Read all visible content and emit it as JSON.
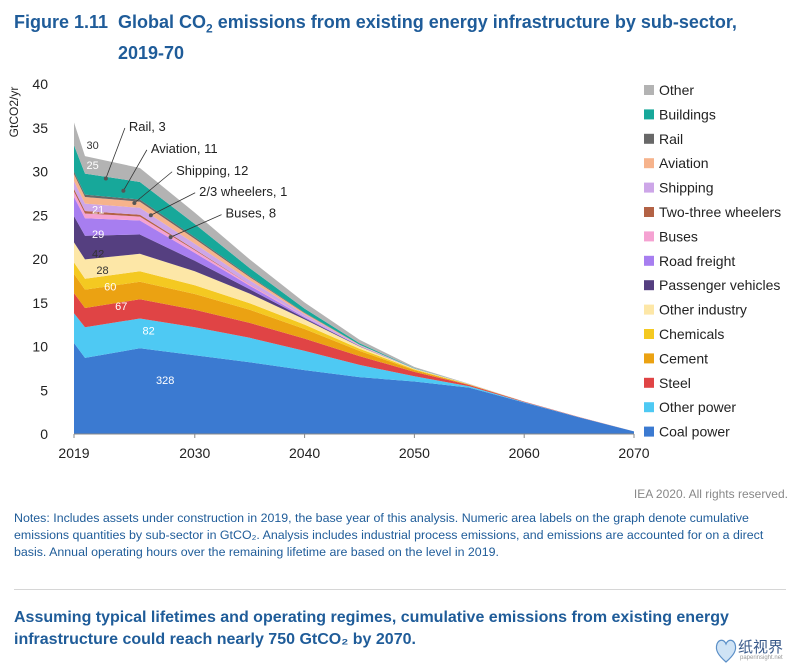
{
  "figure": {
    "number": "Figure 1.11",
    "title_pre": "Global CO",
    "title_sub": "2",
    "title_post": " emissions from existing energy infrastructure by sub-sector,",
    "title_line2": "2019-70"
  },
  "chart_data": {
    "type": "area",
    "stacked": true,
    "ylabel": "GtCO2/yr",
    "ylim": [
      0,
      40
    ],
    "xlim": [
      2019,
      2070
    ],
    "yticks": [
      "0",
      "5",
      "10",
      "15",
      "20",
      "25",
      "30",
      "35",
      "40"
    ],
    "xticks": [
      "2019",
      "2030",
      "2040",
      "2050",
      "2060",
      "2070"
    ],
    "grid": false,
    "legend_placement": "right",
    "x": [
      2019,
      2020,
      2025,
      2030,
      2035,
      2040,
      2045,
      2050,
      2055,
      2060,
      2065,
      2070
    ],
    "series": [
      {
        "name": "Coal power",
        "color": "#3b7ad1",
        "values": [
          10.4,
          8.7,
          9.8,
          9.0,
          8.2,
          7.3,
          6.5,
          6.0,
          5.3,
          3.6,
          1.9,
          0.3
        ]
      },
      {
        "name": "Other power",
        "color": "#4ec9f3",
        "values": [
          3.4,
          3.5,
          3.4,
          3.2,
          2.8,
          2.2,
          1.4,
          0.6,
          0.15,
          0.05,
          0.02,
          0.0
        ]
      },
      {
        "name": "Steel",
        "color": "#e04445",
        "values": [
          2.3,
          2.2,
          2.2,
          2.0,
          1.7,
          1.4,
          1.0,
          0.5,
          0.15,
          0.05,
          0.02,
          0.0
        ]
      },
      {
        "name": "Cement",
        "color": "#eba212",
        "values": [
          2.2,
          2.1,
          2.0,
          1.8,
          1.5,
          1.1,
          0.6,
          0.2,
          0.05,
          0.0,
          0.0,
          0.0
        ]
      },
      {
        "name": "Chemicals",
        "color": "#f4c921",
        "values": [
          1.3,
          1.25,
          1.2,
          1.0,
          0.75,
          0.5,
          0.25,
          0.08,
          0.02,
          0.0,
          0.0,
          0.0
        ]
      },
      {
        "name": "Other industry",
        "color": "#fde7a7",
        "values": [
          2.3,
          2.2,
          2.0,
          1.6,
          1.1,
          0.6,
          0.25,
          0.08,
          0.02,
          0.0,
          0.0,
          0.0
        ]
      },
      {
        "name": "Passenger vehicles",
        "color": "#553f80",
        "values": [
          3.0,
          2.7,
          2.2,
          1.2,
          0.5,
          0.15,
          0.04,
          0.0,
          0.0,
          0.0,
          0.0,
          0.0
        ]
      },
      {
        "name": "Road freight",
        "color": "#a77ef0",
        "values": [
          2.2,
          2.0,
          1.6,
          0.9,
          0.4,
          0.12,
          0.03,
          0.0,
          0.0,
          0.0,
          0.0,
          0.0
        ]
      },
      {
        "name": "Buses",
        "color": "#f5a2d2",
        "values": [
          0.6,
          0.55,
          0.45,
          0.3,
          0.15,
          0.05,
          0.01,
          0.0,
          0.0,
          0.0,
          0.0,
          0.0
        ]
      },
      {
        "name": "Two-three wheelers",
        "color": "#b36245",
        "values": [
          0.3,
          0.28,
          0.2,
          0.1,
          0.03,
          0.0,
          0.0,
          0.0,
          0.0,
          0.0,
          0.0,
          0.0
        ]
      },
      {
        "name": "Shipping",
        "color": "#cda6e8",
        "values": [
          0.9,
          0.85,
          0.8,
          0.65,
          0.45,
          0.25,
          0.08,
          0.02,
          0.0,
          0.0,
          0.0,
          0.0
        ]
      },
      {
        "name": "Aviation",
        "color": "#f6b38c",
        "values": [
          0.8,
          0.75,
          0.7,
          0.55,
          0.35,
          0.15,
          0.04,
          0.0,
          0.0,
          0.0,
          0.0,
          0.0
        ]
      },
      {
        "name": "Rail",
        "color": "#686868",
        "values": [
          0.3,
          0.28,
          0.25,
          0.2,
          0.13,
          0.06,
          0.02,
          0.0,
          0.0,
          0.0,
          0.0,
          0.0
        ]
      },
      {
        "name": "Buildings",
        "color": "#17a89a",
        "values": [
          3.0,
          2.4,
          2.0,
          1.5,
          0.9,
          0.45,
          0.15,
          0.03,
          0.0,
          0.0,
          0.0,
          0.0
        ]
      },
      {
        "name": "Other",
        "color": "#b3b3b3",
        "values": [
          2.6,
          2.0,
          1.6,
          1.3,
          1.0,
          0.7,
          0.4,
          0.15,
          0.04,
          0.01,
          0.0,
          0.0
        ]
      }
    ],
    "area_labels": [
      {
        "text": "328",
        "x": 2027.3,
        "y": 5.7,
        "color": "#ffffff"
      },
      {
        "text": "82",
        "x": 2025.8,
        "y": 11.4,
        "color": "#ffffff"
      },
      {
        "text": "67",
        "x": 2023.3,
        "y": 14.2,
        "color": "#ffffff"
      },
      {
        "text": "60",
        "x": 2022.3,
        "y": 16.4,
        "color": "#ffffff"
      },
      {
        "text": "28",
        "x": 2021.6,
        "y": 18.3,
        "color": "#333333"
      },
      {
        "text": "42",
        "x": 2021.2,
        "y": 20.2,
        "color": "#333333"
      },
      {
        "text": "29",
        "x": 2021.2,
        "y": 22.4,
        "color": "#ffffff"
      },
      {
        "text": "21",
        "x": 2021.2,
        "y": 25.2,
        "color": "#ffffff"
      },
      {
        "text": "25",
        "x": 2020.7,
        "y": 30.3,
        "color": "#ffffff"
      },
      {
        "text": "30",
        "x": 2020.7,
        "y": 32.6,
        "color": "#333333"
      }
    ],
    "callouts": [
      {
        "text": "Rail, 3",
        "point": [
          2021.9,
          29.2
        ],
        "label": [
          2024.0,
          35.2
        ]
      },
      {
        "text": "Aviation, 11",
        "point": [
          2023.5,
          27.8
        ],
        "label": [
          2026.0,
          32.7
        ]
      },
      {
        "text": "Shipping, 12",
        "point": [
          2024.5,
          26.4
        ],
        "label": [
          2028.3,
          30.2
        ]
      },
      {
        "text": "2/3 wheelers, 1",
        "point": [
          2026.0,
          25.0
        ],
        "label": [
          2030.4,
          27.8
        ]
      },
      {
        "text": "Buses, 8",
        "point": [
          2027.8,
          22.5
        ],
        "label": [
          2032.8,
          25.3
        ]
      }
    ]
  },
  "credit": "IEA 2020. All rights reserved.",
  "notes": "Notes: Includes assets under construction in 2019, the base year of this analysis. Numeric area labels on the graph denote cumulative emissions quantities by sub-sector in GtCO₂. Analysis includes industrial process emissions, and emissions are accounted for on a direct basis. Annual operating hours over the remaining lifetime are based on the level in 2019.",
  "takeaway": "Assuming typical lifetimes and operating regimes, cumulative emissions from existing energy infrastructure could reach nearly 750 GtCO₂ by 2070.",
  "watermark": {
    "text": "纸视界",
    "sub": "paperinsight.net"
  }
}
